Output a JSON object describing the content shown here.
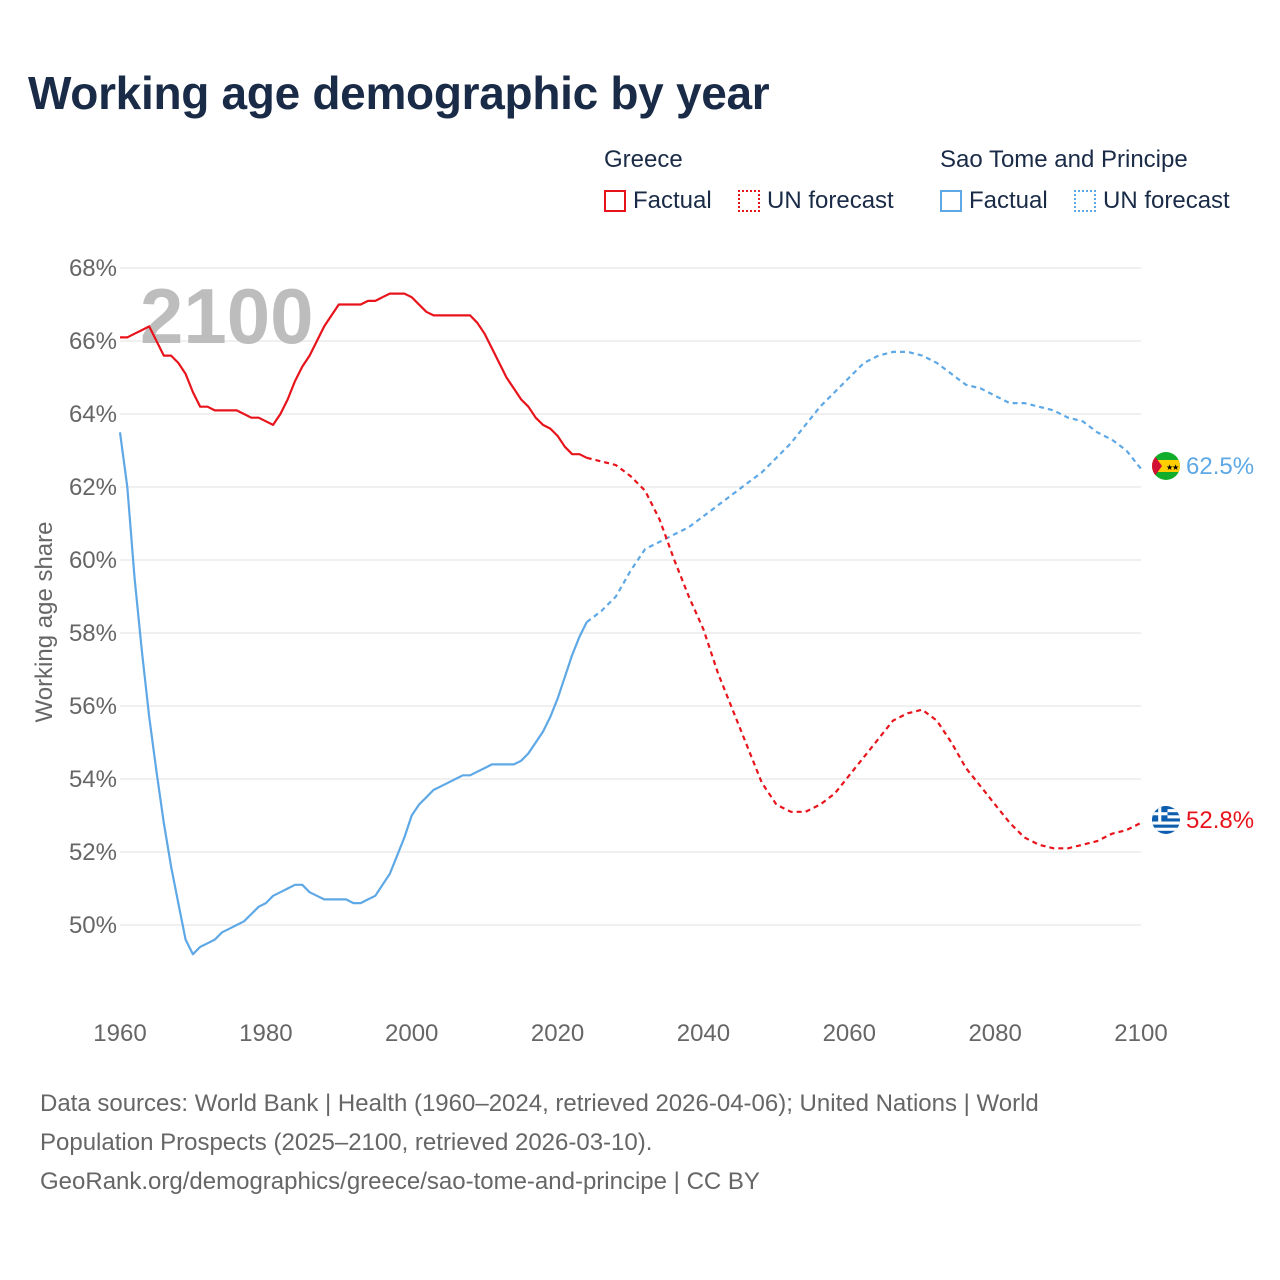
{
  "title": "Working age demographic by year",
  "legend": {
    "groups": [
      {
        "name": "Greece",
        "color": "#e8141c",
        "factual_label": "Factual",
        "forecast_label": "UN forecast"
      },
      {
        "name": "Sao Tome and Principe",
        "color": "#5ea8e6",
        "factual_label": "Factual",
        "forecast_label": "UN forecast"
      }
    ]
  },
  "year_overlay": "2100",
  "footer": {
    "line1": "Data sources: World Bank | Health (1960–2024, retrieved 2026-04-06); United Nations | World",
    "line2": "Population Prospects (2025–2100, retrieved 2026-03-10).",
    "line3": "GeoRank.org/demographics/greece/sao-tome-and-principe | CC BY"
  },
  "chart_data": {
    "type": "line",
    "ylabel": "Working age share",
    "xlabel": "",
    "xlim": [
      1960,
      2100
    ],
    "ylim": [
      47.5,
      68.5
    ],
    "xticks": [
      1960,
      1980,
      2000,
      2020,
      2040,
      2060,
      2080,
      2100
    ],
    "xtick_labels": [
      "1960",
      "1980",
      "2000",
      "2020",
      "2040",
      "2060",
      "2080",
      "2100"
    ],
    "yticks": [
      50,
      52,
      54,
      56,
      58,
      60,
      62,
      64,
      66,
      68
    ],
    "ytick_labels": [
      "50%",
      "52%",
      "54%",
      "56%",
      "58%",
      "60%",
      "62%",
      "64%",
      "66%",
      "68%"
    ],
    "grid": true,
    "series": [
      {
        "name": "Greece",
        "color": "#e8141c",
        "end_label": "52.8%",
        "factual": [
          [
            1960,
            66.1
          ],
          [
            1961,
            66.1
          ],
          [
            1962,
            66.2
          ],
          [
            1963,
            66.3
          ],
          [
            1964,
            66.4
          ],
          [
            1965,
            66.0
          ],
          [
            1966,
            65.6
          ],
          [
            1967,
            65.6
          ],
          [
            1968,
            65.4
          ],
          [
            1969,
            65.1
          ],
          [
            1970,
            64.6
          ],
          [
            1971,
            64.2
          ],
          [
            1972,
            64.2
          ],
          [
            1973,
            64.1
          ],
          [
            1974,
            64.1
          ],
          [
            1975,
            64.1
          ],
          [
            1976,
            64.1
          ],
          [
            1977,
            64.0
          ],
          [
            1978,
            63.9
          ],
          [
            1979,
            63.9
          ],
          [
            1980,
            63.8
          ],
          [
            1981,
            63.7
          ],
          [
            1982,
            64.0
          ],
          [
            1983,
            64.4
          ],
          [
            1984,
            64.9
          ],
          [
            1985,
            65.3
          ],
          [
            1986,
            65.6
          ],
          [
            1987,
            66.0
          ],
          [
            1988,
            66.4
          ],
          [
            1989,
            66.7
          ],
          [
            1990,
            67.0
          ],
          [
            1991,
            67.0
          ],
          [
            1992,
            67.0
          ],
          [
            1993,
            67.0
          ],
          [
            1994,
            67.1
          ],
          [
            1995,
            67.1
          ],
          [
            1996,
            67.2
          ],
          [
            1997,
            67.3
          ],
          [
            1998,
            67.3
          ],
          [
            1999,
            67.3
          ],
          [
            2000,
            67.2
          ],
          [
            2001,
            67.0
          ],
          [
            2002,
            66.8
          ],
          [
            2003,
            66.7
          ],
          [
            2004,
            66.7
          ],
          [
            2005,
            66.7
          ],
          [
            2006,
            66.7
          ],
          [
            2007,
            66.7
          ],
          [
            2008,
            66.7
          ],
          [
            2009,
            66.5
          ],
          [
            2010,
            66.2
          ],
          [
            2011,
            65.8
          ],
          [
            2012,
            65.4
          ],
          [
            2013,
            65.0
          ],
          [
            2014,
            64.7
          ],
          [
            2015,
            64.4
          ],
          [
            2016,
            64.2
          ],
          [
            2017,
            63.9
          ],
          [
            2018,
            63.7
          ],
          [
            2019,
            63.6
          ],
          [
            2020,
            63.4
          ],
          [
            2021,
            63.1
          ],
          [
            2022,
            62.9
          ],
          [
            2023,
            62.9
          ],
          [
            2024,
            62.8
          ]
        ],
        "forecast": [
          [
            2024,
            62.8
          ],
          [
            2026,
            62.7
          ],
          [
            2028,
            62.6
          ],
          [
            2030,
            62.3
          ],
          [
            2032,
            61.9
          ],
          [
            2034,
            61.1
          ],
          [
            2036,
            60.0
          ],
          [
            2038,
            59.0
          ],
          [
            2040,
            58.1
          ],
          [
            2042,
            56.9
          ],
          [
            2044,
            55.9
          ],
          [
            2046,
            54.9
          ],
          [
            2048,
            53.9
          ],
          [
            2050,
            53.3
          ],
          [
            2052,
            53.1
          ],
          [
            2054,
            53.1
          ],
          [
            2056,
            53.3
          ],
          [
            2058,
            53.6
          ],
          [
            2060,
            54.1
          ],
          [
            2062,
            54.6
          ],
          [
            2064,
            55.1
          ],
          [
            2066,
            55.6
          ],
          [
            2068,
            55.8
          ],
          [
            2070,
            55.9
          ],
          [
            2072,
            55.6
          ],
          [
            2074,
            55.0
          ],
          [
            2076,
            54.3
          ],
          [
            2078,
            53.8
          ],
          [
            2080,
            53.3
          ],
          [
            2082,
            52.8
          ],
          [
            2084,
            52.4
          ],
          [
            2086,
            52.2
          ],
          [
            2088,
            52.1
          ],
          [
            2090,
            52.1
          ],
          [
            2092,
            52.2
          ],
          [
            2094,
            52.3
          ],
          [
            2096,
            52.5
          ],
          [
            2098,
            52.6
          ],
          [
            2100,
            52.8
          ]
        ]
      },
      {
        "name": "Sao Tome and Principe",
        "color": "#5ea8e6",
        "end_label": "62.5%",
        "factual": [
          [
            1960,
            63.5
          ],
          [
            1961,
            62.0
          ],
          [
            1962,
            59.5
          ],
          [
            1963,
            57.5
          ],
          [
            1964,
            55.7
          ],
          [
            1965,
            54.2
          ],
          [
            1966,
            52.8
          ],
          [
            1967,
            51.6
          ],
          [
            1968,
            50.6
          ],
          [
            1969,
            49.6
          ],
          [
            1970,
            49.2
          ],
          [
            1971,
            49.4
          ],
          [
            1972,
            49.5
          ],
          [
            1973,
            49.6
          ],
          [
            1974,
            49.8
          ],
          [
            1975,
            49.9
          ],
          [
            1976,
            50.0
          ],
          [
            1977,
            50.1
          ],
          [
            1978,
            50.3
          ],
          [
            1979,
            50.5
          ],
          [
            1980,
            50.6
          ],
          [
            1981,
            50.8
          ],
          [
            1982,
            50.9
          ],
          [
            1983,
            51.0
          ],
          [
            1984,
            51.1
          ],
          [
            1985,
            51.1
          ],
          [
            1986,
            50.9
          ],
          [
            1987,
            50.8
          ],
          [
            1988,
            50.7
          ],
          [
            1989,
            50.7
          ],
          [
            1990,
            50.7
          ],
          [
            1991,
            50.7
          ],
          [
            1992,
            50.6
          ],
          [
            1993,
            50.6
          ],
          [
            1994,
            50.7
          ],
          [
            1995,
            50.8
          ],
          [
            1996,
            51.1
          ],
          [
            1997,
            51.4
          ],
          [
            1998,
            51.9
          ],
          [
            1999,
            52.4
          ],
          [
            2000,
            53.0
          ],
          [
            2001,
            53.3
          ],
          [
            2002,
            53.5
          ],
          [
            2003,
            53.7
          ],
          [
            2004,
            53.8
          ],
          [
            2005,
            53.9
          ],
          [
            2006,
            54.0
          ],
          [
            2007,
            54.1
          ],
          [
            2008,
            54.1
          ],
          [
            2009,
            54.2
          ],
          [
            2010,
            54.3
          ],
          [
            2011,
            54.4
          ],
          [
            2012,
            54.4
          ],
          [
            2013,
            54.4
          ],
          [
            2014,
            54.4
          ],
          [
            2015,
            54.5
          ],
          [
            2016,
            54.7
          ],
          [
            2017,
            55.0
          ],
          [
            2018,
            55.3
          ],
          [
            2019,
            55.7
          ],
          [
            2020,
            56.2
          ],
          [
            2021,
            56.8
          ],
          [
            2022,
            57.4
          ],
          [
            2023,
            57.9
          ],
          [
            2024,
            58.3
          ]
        ],
        "forecast": [
          [
            2024,
            58.3
          ],
          [
            2026,
            58.6
          ],
          [
            2028,
            59.0
          ],
          [
            2030,
            59.7
          ],
          [
            2032,
            60.3
          ],
          [
            2034,
            60.5
          ],
          [
            2036,
            60.7
          ],
          [
            2038,
            60.9
          ],
          [
            2040,
            61.2
          ],
          [
            2042,
            61.5
          ],
          [
            2044,
            61.8
          ],
          [
            2046,
            62.1
          ],
          [
            2048,
            62.4
          ],
          [
            2050,
            62.8
          ],
          [
            2052,
            63.2
          ],
          [
            2054,
            63.7
          ],
          [
            2056,
            64.2
          ],
          [
            2058,
            64.6
          ],
          [
            2060,
            65.0
          ],
          [
            2062,
            65.4
          ],
          [
            2064,
            65.6
          ],
          [
            2066,
            65.7
          ],
          [
            2068,
            65.7
          ],
          [
            2070,
            65.6
          ],
          [
            2072,
            65.4
          ],
          [
            2074,
            65.1
          ],
          [
            2076,
            64.8
          ],
          [
            2078,
            64.7
          ],
          [
            2080,
            64.5
          ],
          [
            2082,
            64.3
          ],
          [
            2084,
            64.3
          ],
          [
            2086,
            64.2
          ],
          [
            2088,
            64.1
          ],
          [
            2090,
            63.9
          ],
          [
            2092,
            63.8
          ],
          [
            2094,
            63.5
          ],
          [
            2096,
            63.3
          ],
          [
            2098,
            63.0
          ],
          [
            2100,
            62.5
          ]
        ]
      }
    ]
  }
}
